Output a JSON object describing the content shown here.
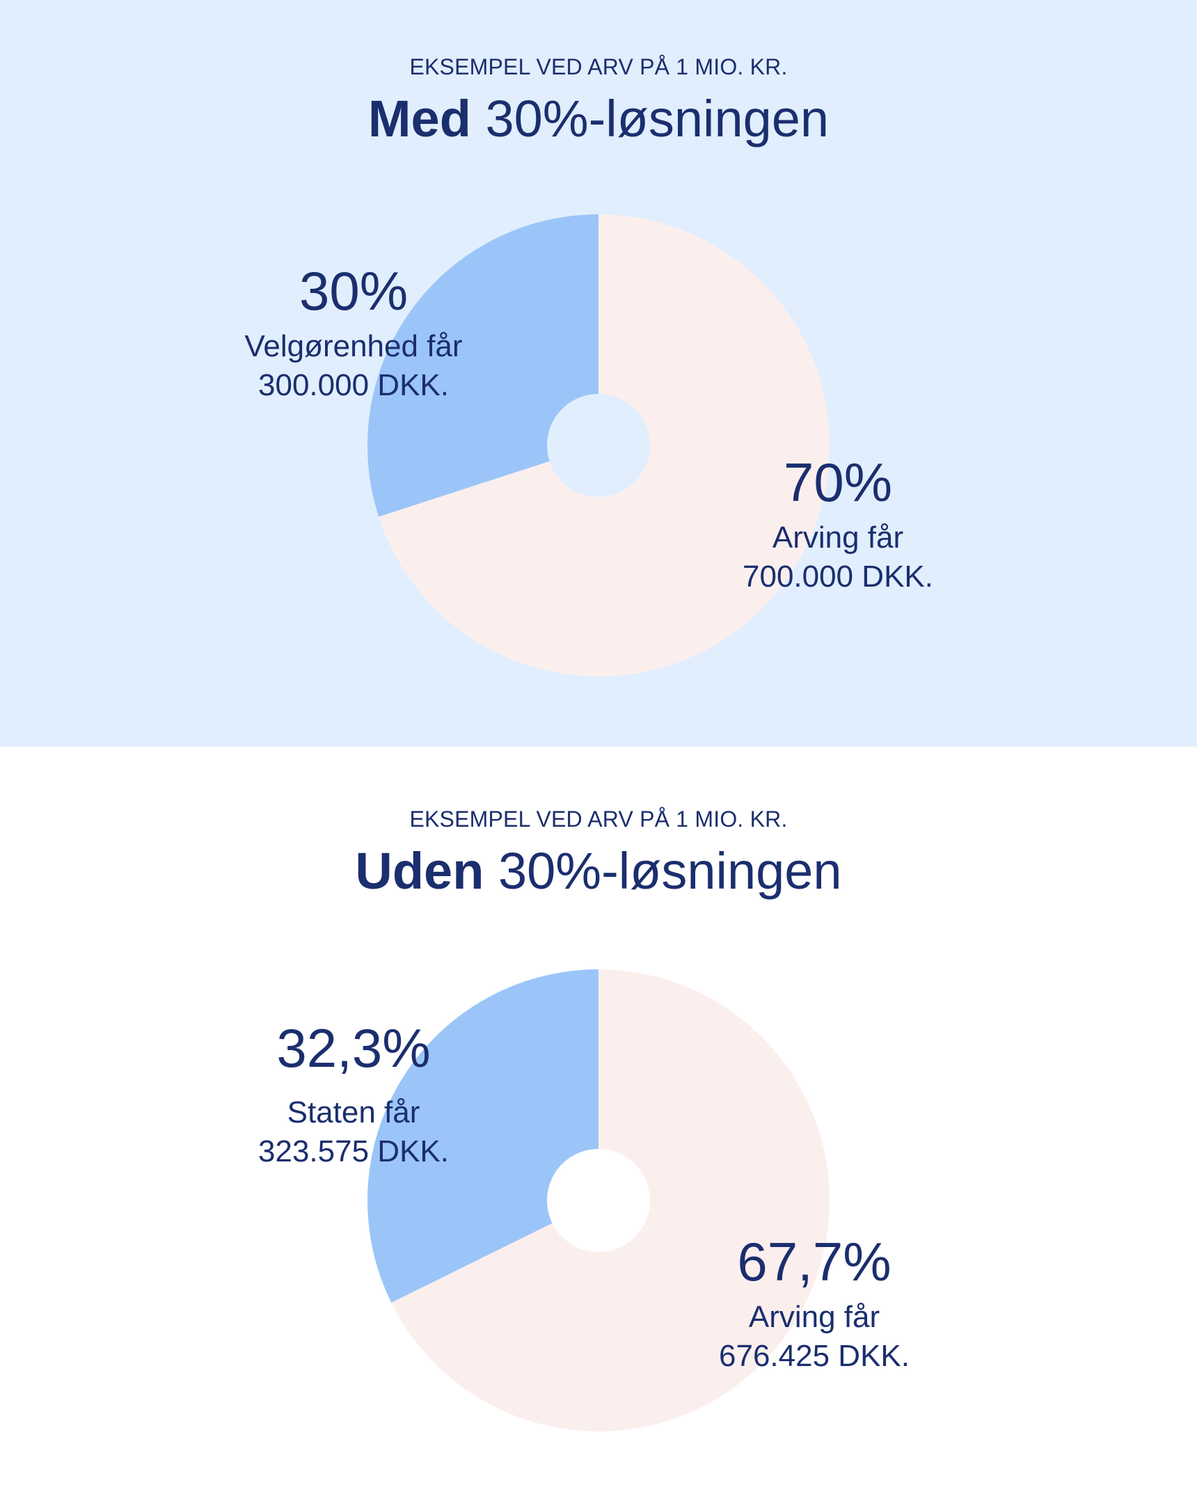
{
  "colors": {
    "top_background": "#e1eefd",
    "bottom_background": "#ffffff",
    "text": "#1b2e6e",
    "slice_primary": "#9bc5f8",
    "slice_secondary": "#fbefee"
  },
  "chart_data": [
    {
      "type": "pie",
      "kicker": "EKSEMPEL VED ARV PÅ 1 MIO. KR.",
      "title_bold": "Med",
      "title_rest": "30%-løsningen",
      "slices": [
        {
          "percent_label": "30%",
          "value": 30,
          "label": "Velgørenhed får",
          "amount": "300.000 DKK."
        },
        {
          "percent_label": "70%",
          "value": 70,
          "label": "Arving får",
          "amount": "700.000 DKK."
        }
      ]
    },
    {
      "type": "pie",
      "kicker": "EKSEMPEL VED ARV PÅ 1 MIO. KR.",
      "title_bold": "Uden",
      "title_rest": "30%-løsningen",
      "slices": [
        {
          "percent_label": "32,3%",
          "value": 32.3,
          "label": "Staten får",
          "amount": "323.575 DKK."
        },
        {
          "percent_label": "67,7%",
          "value": 67.7,
          "label": "Arving får",
          "amount": "676.425 DKK."
        }
      ]
    }
  ]
}
